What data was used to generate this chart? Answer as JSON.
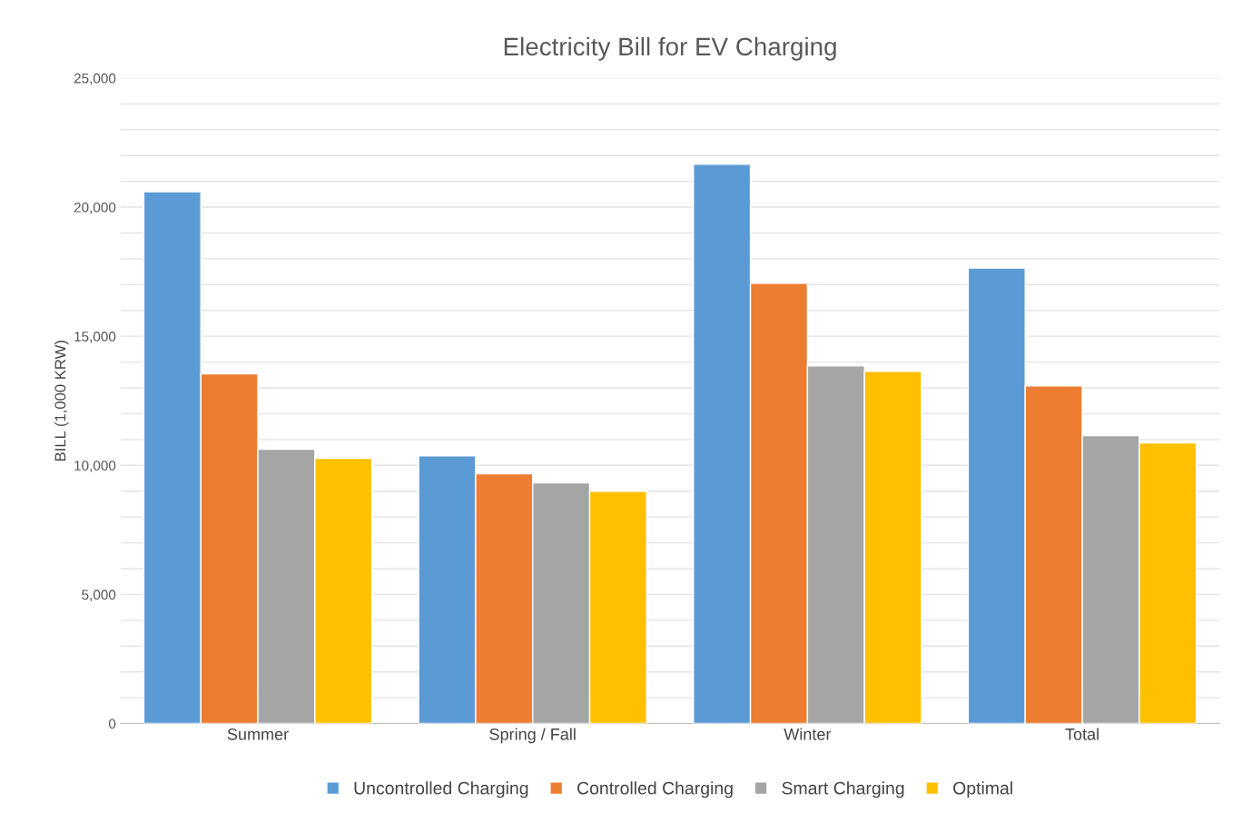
{
  "chart_data": {
    "type": "bar",
    "title": "Electricity Bill for EV Charging",
    "ylabel": "BILL (1,000 KRW)",
    "categories": [
      "Summer",
      "Spring / Fall",
      "Winter",
      "Total"
    ],
    "series": [
      {
        "name": "Uncontrolled Charging",
        "color": "#5b9bd5",
        "values": [
          20600,
          10370,
          21660,
          17640
        ]
      },
      {
        "name": "Controlled Charging",
        "color": "#ed7d31",
        "values": [
          13540,
          9670,
          17050,
          13080
        ]
      },
      {
        "name": "Smart Charging",
        "color": "#a5a5a5",
        "values": [
          10620,
          9320,
          13850,
          11150
        ]
      },
      {
        "name": "Optimal",
        "color": "#ffc000",
        "values": [
          10270,
          9000,
          13640,
          10870
        ]
      }
    ],
    "ylim": [
      0,
      25000
    ],
    "yticks": [
      {
        "value": 0,
        "label": "0"
      },
      {
        "value": 1000,
        "label": null
      },
      {
        "value": 2000,
        "label": null
      },
      {
        "value": 3000,
        "label": null
      },
      {
        "value": 4000,
        "label": null
      },
      {
        "value": 5000,
        "label": "5,000"
      },
      {
        "value": 6000,
        "label": null
      },
      {
        "value": 7000,
        "label": null
      },
      {
        "value": 8000,
        "label": null
      },
      {
        "value": 9000,
        "label": null
      },
      {
        "value": 10000,
        "label": "10,000"
      },
      {
        "value": 11000,
        "label": null
      },
      {
        "value": 12000,
        "label": null
      },
      {
        "value": 13000,
        "label": null
      },
      {
        "value": 14000,
        "label": null
      },
      {
        "value": 15000,
        "label": "15,000"
      },
      {
        "value": 16000,
        "label": null
      },
      {
        "value": 17000,
        "label": null
      },
      {
        "value": 18000,
        "label": null
      },
      {
        "value": 19000,
        "label": null
      },
      {
        "value": 20000,
        "label": "20,000"
      },
      {
        "value": 21000,
        "label": null
      },
      {
        "value": 22000,
        "label": null
      },
      {
        "value": 23000,
        "label": null
      },
      {
        "value": 24000,
        "label": null
      },
      {
        "value": 25000,
        "label": "25,000"
      }
    ],
    "grid": "y",
    "legend": "bottom"
  }
}
